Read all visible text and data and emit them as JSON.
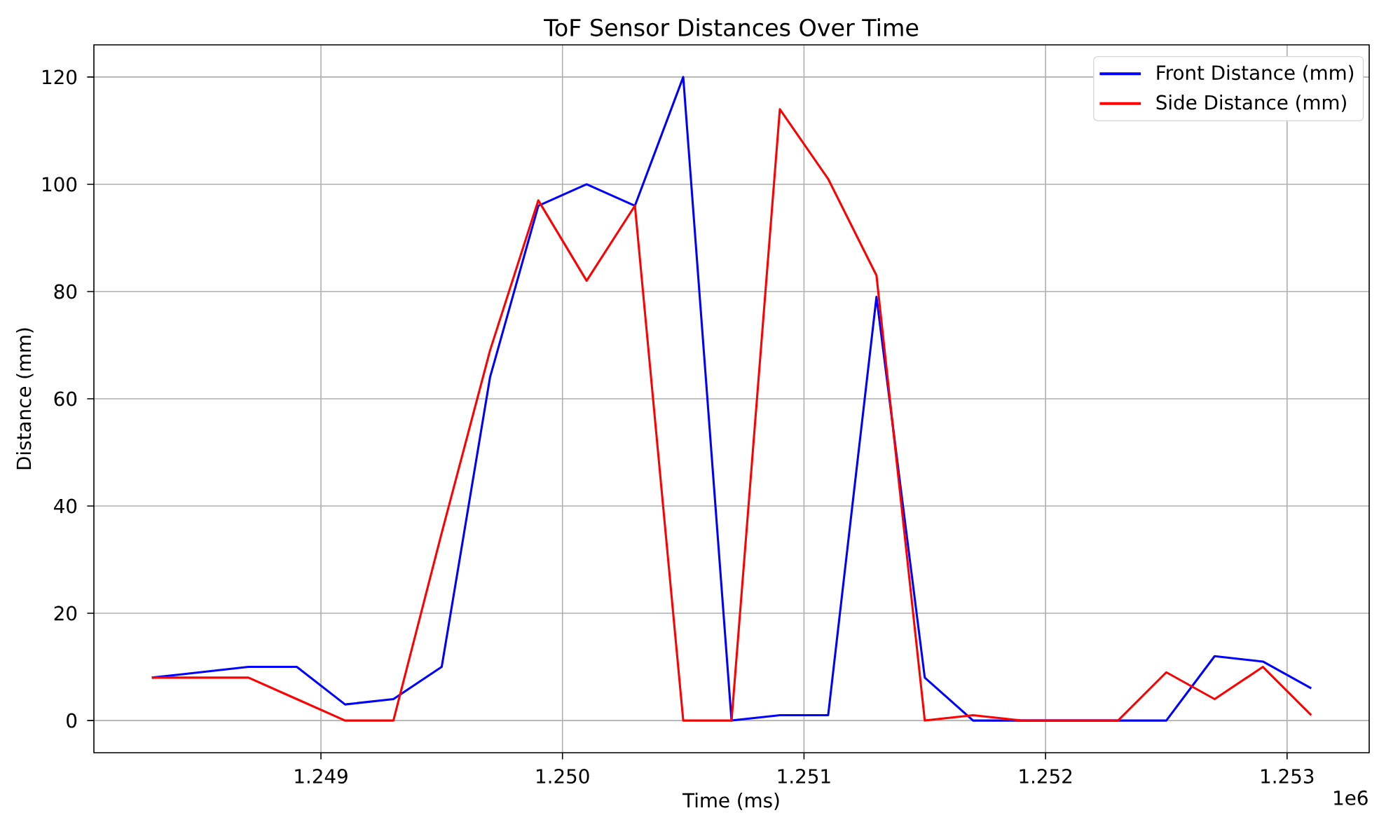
{
  "chart_data": {
    "type": "line",
    "title": "ToF Sensor Distances Over Time",
    "xlabel": "Time (ms)",
    "ylabel": "Distance (mm)",
    "x": [
      1.2483,
      1.2487,
      1.2489,
      1.2491,
      1.2493,
      1.2495,
      1.2497,
      1.2499,
      1.2501,
      1.2503,
      1.2505,
      1.2507,
      1.2509,
      1.2511,
      1.2513,
      1.2515,
      1.2517,
      1.2519,
      1.2521,
      1.2523,
      1.2525,
      1.2527,
      1.2529,
      1.2531
    ],
    "series": [
      {
        "name": "Front Distance (mm)",
        "color": "#0000ff",
        "values": [
          8,
          10,
          10,
          3,
          4,
          10,
          64,
          96,
          100,
          96,
          120,
          0,
          1,
          1,
          79,
          8,
          0,
          0,
          0,
          0,
          0,
          12,
          11,
          6
        ]
      },
      {
        "name": "Side Distance (mm)",
        "color": "#ff0000",
        "values": [
          8,
          8,
          4,
          0,
          0,
          35,
          69,
          97,
          82,
          96,
          0,
          0,
          114,
          101,
          83,
          0,
          1,
          0,
          0,
          0,
          9,
          4,
          10,
          1
        ]
      }
    ],
    "xlim": [
      1.24806,
      1.25334
    ],
    "ylim": [
      -6,
      126
    ],
    "xticks": [
      1.249,
      {
        "value": 1.25,
        "label": "1.250"
      },
      1.251,
      1.252,
      1.253
    ],
    "yticks": [
      0,
      20,
      40,
      60,
      80,
      100,
      120
    ],
    "grid": true,
    "legend": "top right",
    "annotations": [
      "1e6"
    ]
  }
}
